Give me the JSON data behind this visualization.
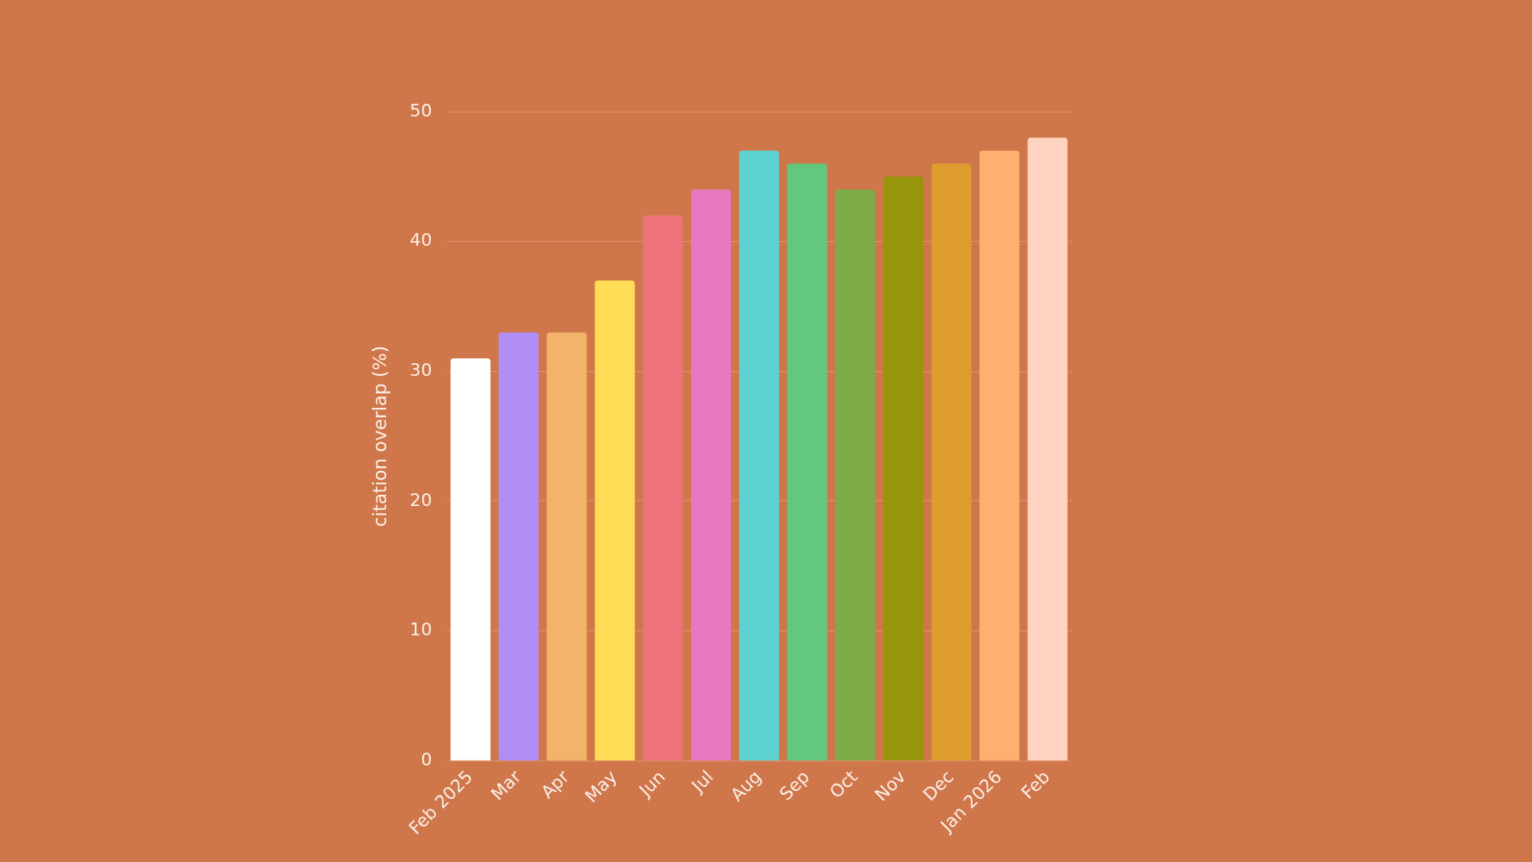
{
  "chart_data": {
    "type": "bar",
    "ylabel": "citation overlap (%)",
    "categories": [
      "Feb 2025",
      "Mar",
      "Apr",
      "May",
      "Jun",
      "Jul",
      "Aug",
      "Sep",
      "Oct",
      "Nov",
      "Dec",
      "Jan 2026",
      "Feb"
    ],
    "values": [
      31,
      33,
      33,
      37,
      42,
      44,
      47,
      46,
      44,
      45,
      46,
      47,
      48
    ],
    "colors": [
      "#ffffff",
      "#b08ef5",
      "#f2b46a",
      "#ffdd57",
      "#ee727a",
      "#e879c0",
      "#5cd3d1",
      "#62c87e",
      "#7eab47",
      "#97950b",
      "#de9c2e",
      "#ffb06e",
      "#ffd3c0"
    ],
    "ylim": [
      0,
      50
    ],
    "yticks": [
      0,
      10,
      20,
      30,
      40,
      50
    ],
    "grid": "y",
    "legend": false
  }
}
